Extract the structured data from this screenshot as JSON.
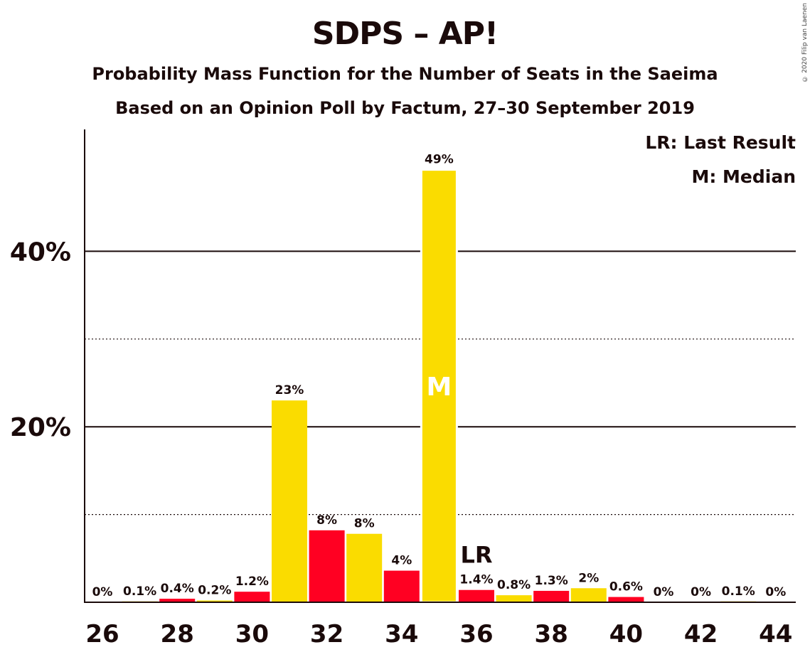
{
  "chart_data": {
    "type": "bar",
    "title": "SDPS – AP!",
    "subtitle": "Probability Mass Function for the Number of Seats in the Saeima",
    "subtitle2": "Based on an Opinion Poll by Factum, 27–30 September 2019",
    "x": [
      26,
      27,
      28,
      29,
      30,
      31,
      32,
      33,
      34,
      35,
      36,
      37,
      38,
      39,
      40,
      41,
      42,
      43,
      44
    ],
    "values": [
      0,
      0.1,
      0.4,
      0.2,
      1.2,
      23,
      8.2,
      7.8,
      3.6,
      49.3,
      1.4,
      0.8,
      1.3,
      1.6,
      0.6,
      0,
      0,
      0.1,
      0
    ],
    "data_labels": [
      "0%",
      "0.1%",
      "0.4%",
      "0.2%",
      "1.2%",
      "23%",
      "8%",
      "8%",
      "4%",
      "49%",
      "1.4%",
      "0.8%",
      "1.3%",
      "2%",
      "0.6%",
      "0%",
      "0%",
      "0.1%",
      "0%"
    ],
    "x_tick_labels": [
      "26",
      "28",
      "30",
      "32",
      "34",
      "36",
      "38",
      "40",
      "42",
      "44"
    ],
    "y_tick_labels": [
      "20%",
      "40%"
    ],
    "ylim": [
      0,
      53.8
    ],
    "major_gridlines": [
      20,
      40
    ],
    "minor_gridlines": [
      10,
      30
    ],
    "median_seat": 35,
    "median_marker": "M",
    "last_result_seat": 36,
    "last_result_marker": "LR",
    "legend": [
      "LR: Last Result",
      "M: Median"
    ],
    "legend_position": "top-right",
    "copyright": "© 2020 Filip van Laenen",
    "colors": {
      "odd_seat_bar": "#fadc00",
      "even_seat_bar": "#ff0022",
      "axis": "#1a0a0a",
      "background": "#ffffff"
    }
  }
}
